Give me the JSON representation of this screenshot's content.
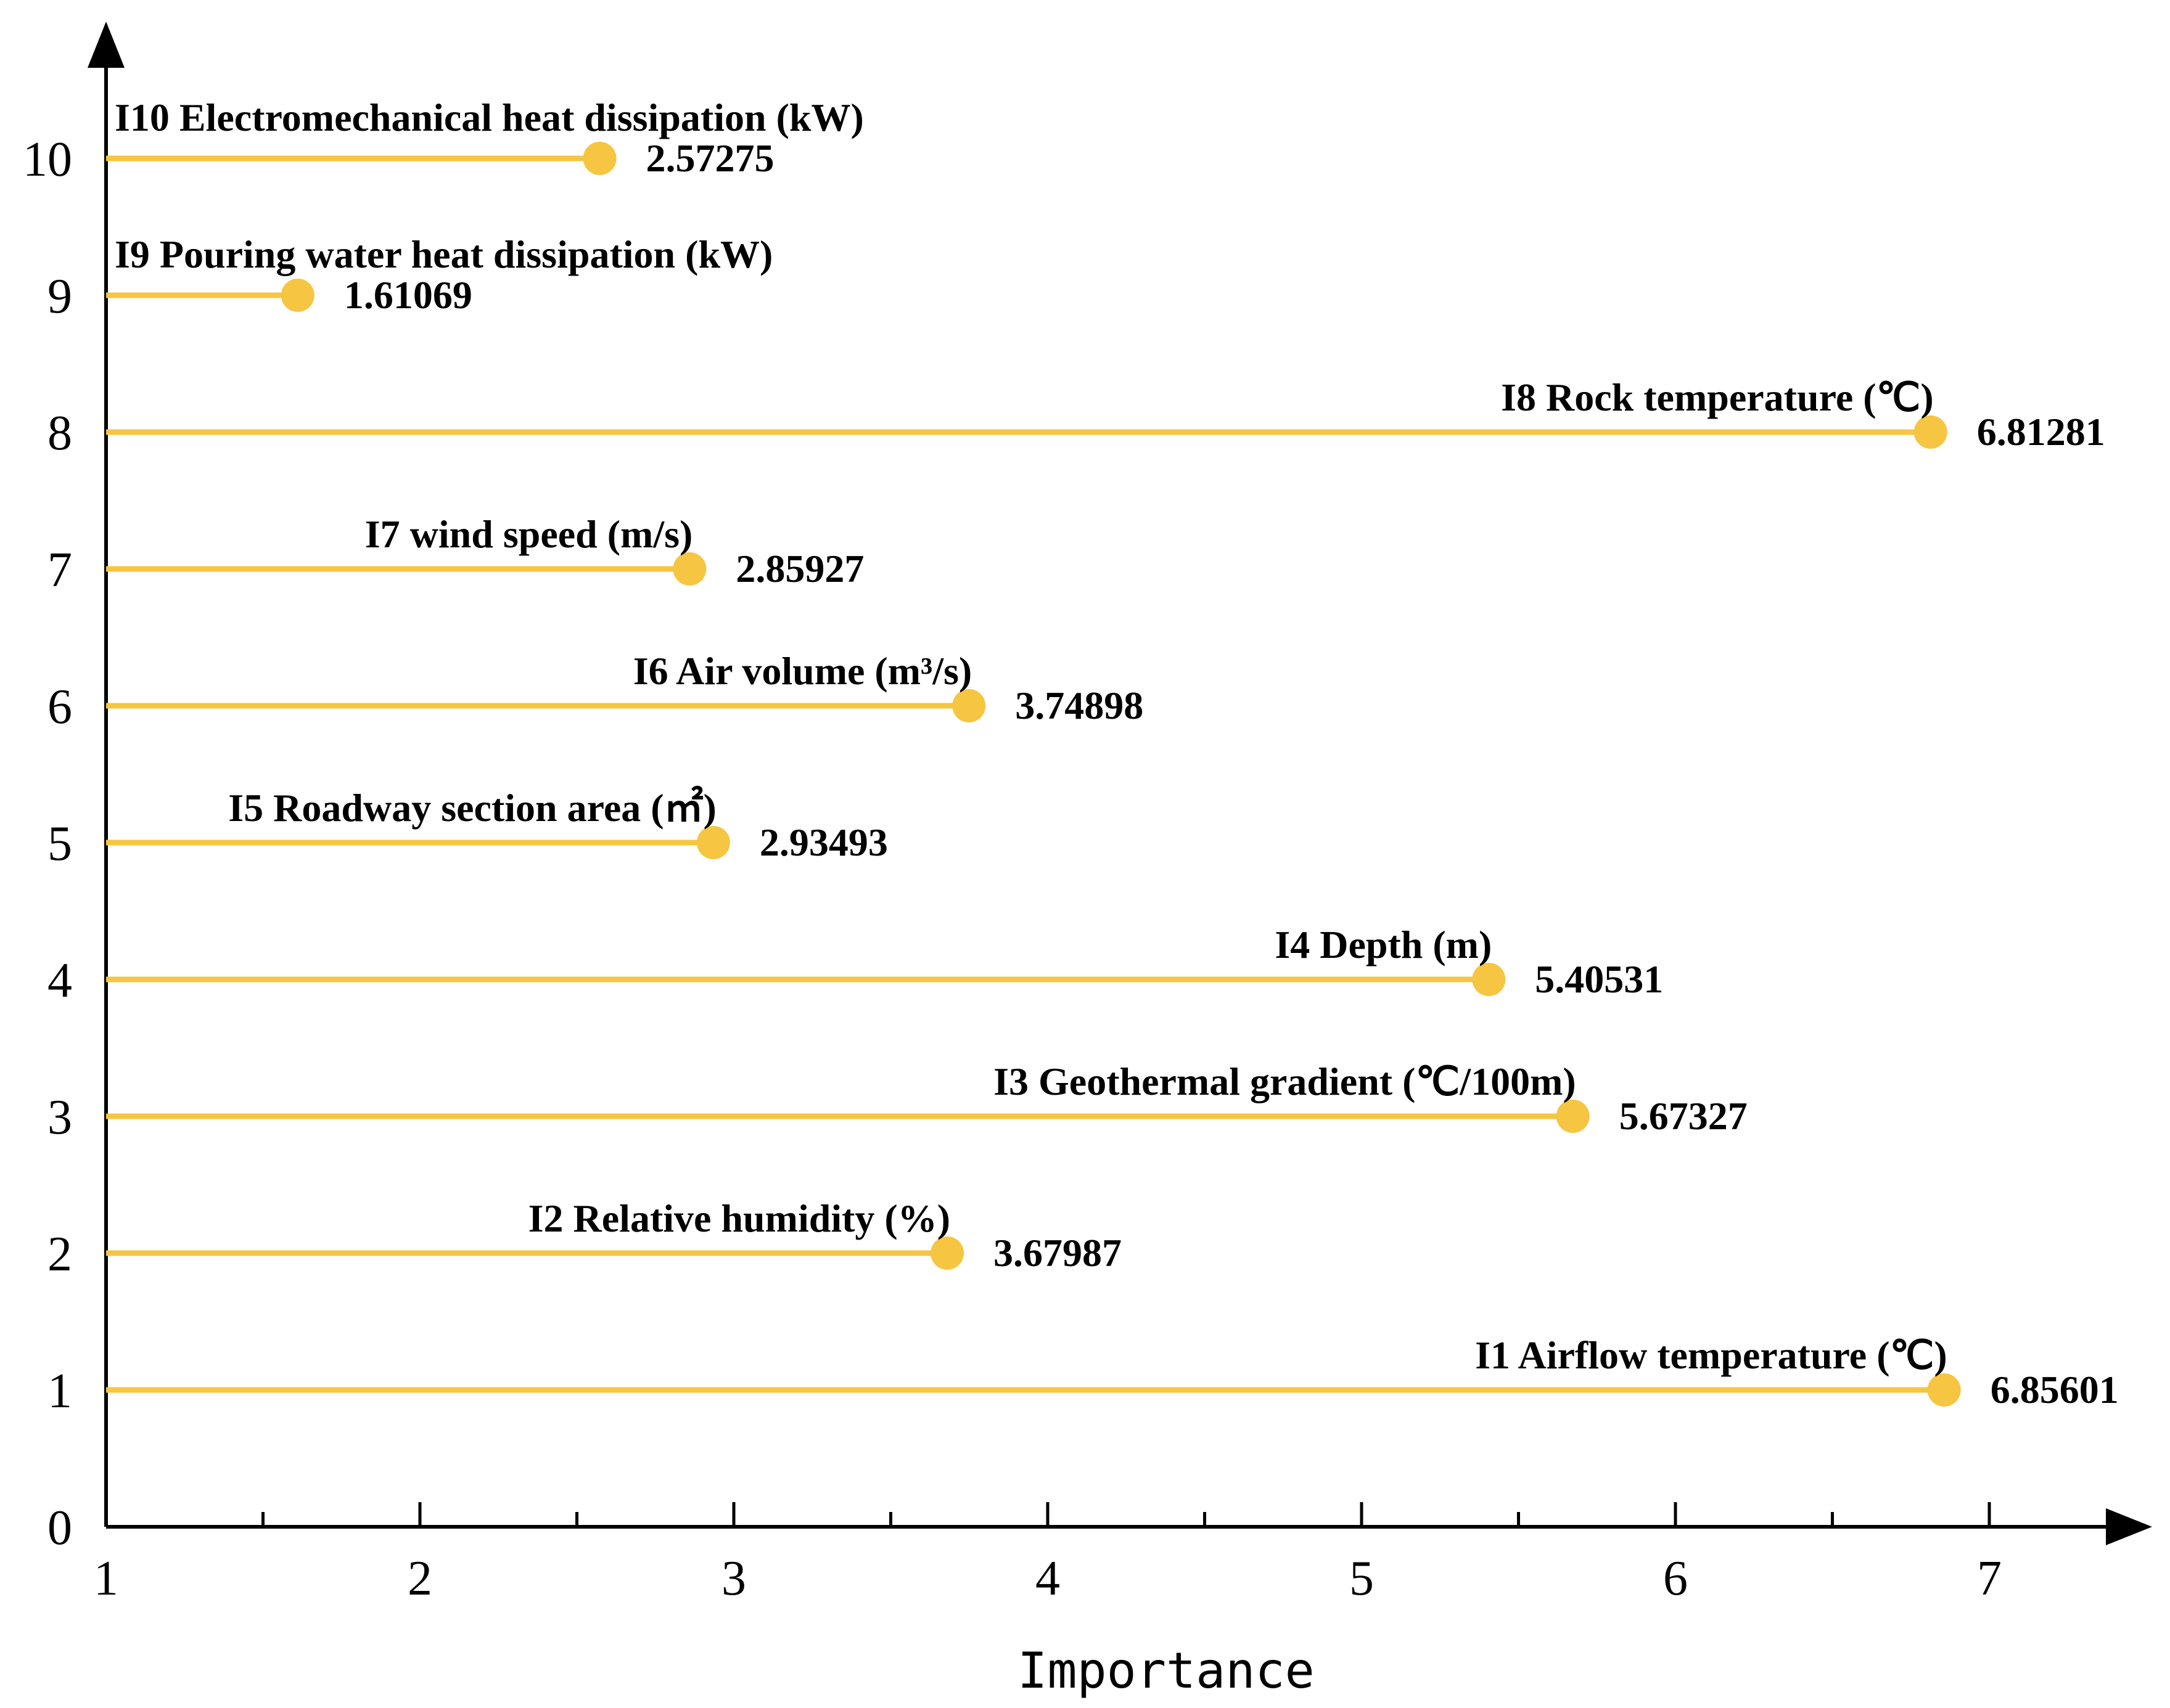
{
  "chart_data": {
    "type": "lollipop",
    "xlabel": "Importance",
    "ylabel": "",
    "xlim": [
      1,
      7.5
    ],
    "ylim": [
      0,
      11
    ],
    "xticks": [
      1,
      2,
      3,
      4,
      5,
      6,
      7
    ],
    "yticks": [
      0,
      1,
      2,
      3,
      4,
      5,
      6,
      7,
      8,
      9,
      10
    ],
    "color": "#F6C541",
    "items": [
      {
        "y": 10,
        "label": "I10 Electromechanical heat dissipation (kW)",
        "value": 2.57275,
        "value_text": "2.57275",
        "label_align": "start"
      },
      {
        "y": 9,
        "label": "I9 Pouring water heat dissipation (kW)",
        "value": 1.61069,
        "value_text": "1.61069",
        "label_align": "start"
      },
      {
        "y": 8,
        "label": "I8 Rock temperature (℃)",
        "value": 6.81281,
        "value_text": "6.81281",
        "label_align": "end"
      },
      {
        "y": 7,
        "label": "I7 wind speed (m/s)",
        "value": 2.85927,
        "value_text": "2.85927",
        "label_align": "end"
      },
      {
        "y": 6,
        "label": "I6 Air volume (m³/s)",
        "value": 3.74898,
        "value_text": "3.74898",
        "label_align": "end"
      },
      {
        "y": 5,
        "label": "I5 Roadway section area (㎡)",
        "value": 2.93493,
        "value_text": "2.93493",
        "label_align": "end"
      },
      {
        "y": 4,
        "label": "I4 Depth (m)",
        "value": 5.40531,
        "value_text": "5.40531",
        "label_align": "end"
      },
      {
        "y": 3,
        "label": "I3 Geothermal gradient (℃/100m)",
        "value": 5.67327,
        "value_text": "5.67327",
        "label_align": "end"
      },
      {
        "y": 2,
        "label": "I2 Relative humidity (%)",
        "value": 3.67987,
        "value_text": "3.67987",
        "label_align": "end"
      },
      {
        "y": 1,
        "label": "I1 Airflow temperature (℃)",
        "value": 6.85601,
        "value_text": "6.85601",
        "label_align": "end"
      }
    ]
  }
}
